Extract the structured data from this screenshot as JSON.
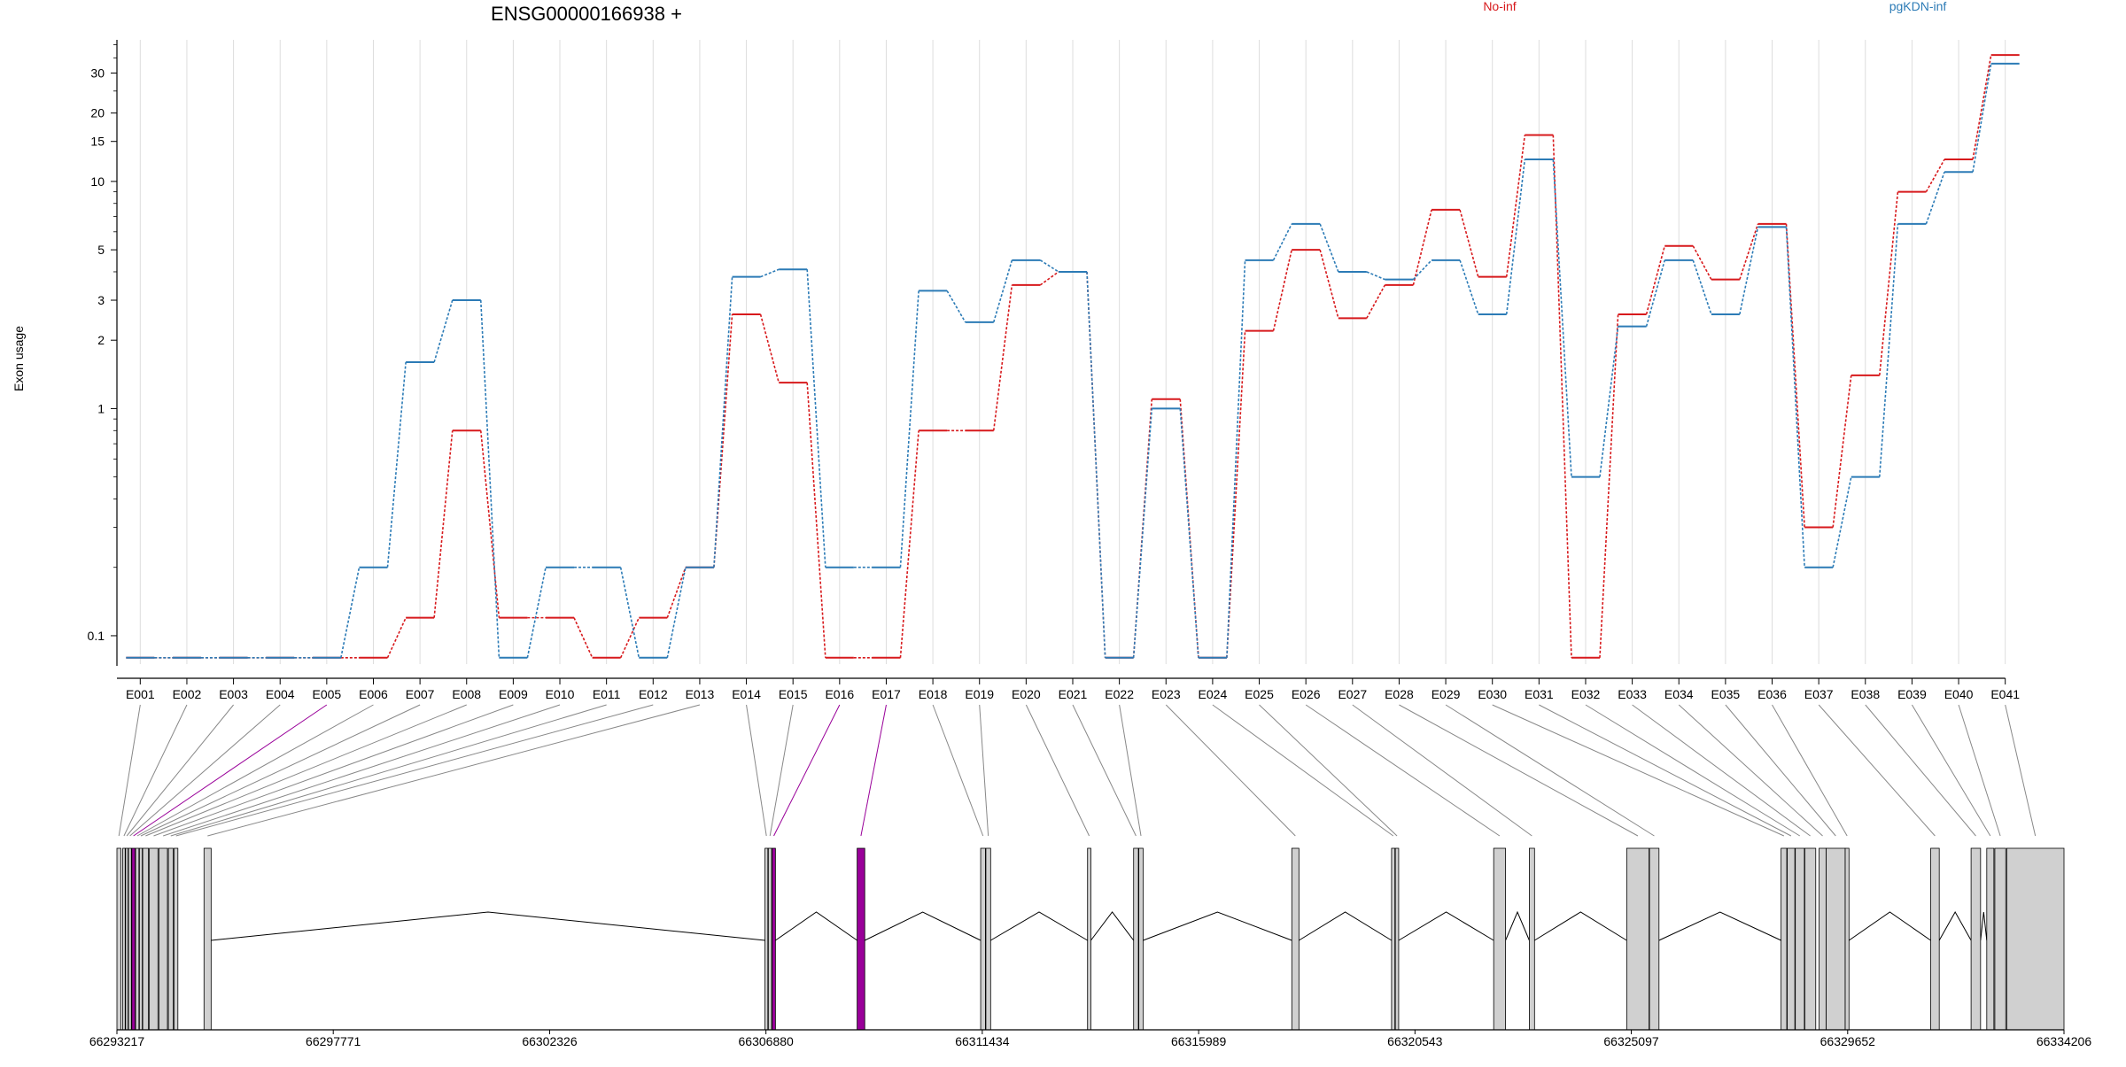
{
  "title": "ENSG00000166938 +",
  "colors": {
    "series_a": "#d7191c",
    "series_b": "#2c7bb6",
    "highlight": "#990099",
    "exon_fill": "#d0d0d0",
    "grid": "#dddddd",
    "axis": "#000000"
  },
  "chart_data": {
    "type": "line",
    "title": "ENSG00000166938 +",
    "ylabel": "Exon usage",
    "xlabel": "",
    "y_scale": "log",
    "ylim": [
      0.075,
      42
    ],
    "y_ticks": [
      0.1,
      1,
      2,
      3,
      5,
      10,
      15,
      20,
      30
    ],
    "y_tick_labels": [
      "0.1",
      "1",
      "2",
      "3",
      "5",
      "10",
      "15",
      "20",
      "30"
    ],
    "legend_position": "top",
    "categories": [
      "E001",
      "E002",
      "E003",
      "E004",
      "E005",
      "E006",
      "E007",
      "E008",
      "E009",
      "E010",
      "E011",
      "E012",
      "E013",
      "E014",
      "E015",
      "E016",
      "E017",
      "E018",
      "E019",
      "E020",
      "E021",
      "E022",
      "E023",
      "E024",
      "E025",
      "E026",
      "E027",
      "E028",
      "E029",
      "E030",
      "E031",
      "E032",
      "E033",
      "E034",
      "E035",
      "E036",
      "E037",
      "E038",
      "E039",
      "E040",
      "E041"
    ],
    "series": [
      {
        "name": "No-inf",
        "color": "#d7191c",
        "values": [
          0.08,
          0.08,
          0.08,
          0.08,
          0.08,
          0.08,
          0.12,
          0.8,
          0.12,
          0.12,
          0.08,
          0.12,
          0.2,
          2.6,
          1.3,
          0.08,
          0.08,
          0.8,
          0.8,
          3.5,
          4.0,
          0.08,
          1.1,
          0.08,
          2.2,
          5.0,
          2.5,
          3.5,
          7.5,
          3.8,
          16.0,
          0.08,
          2.6,
          5.2,
          3.7,
          6.5,
          0.3,
          1.4,
          9.0,
          12.5,
          36.0
        ]
      },
      {
        "name": "pgKDN-inf",
        "color": "#2c7bb6",
        "values": [
          0.08,
          0.08,
          0.08,
          0.08,
          0.08,
          0.2,
          1.6,
          3.0,
          0.08,
          0.2,
          0.2,
          0.08,
          0.2,
          3.8,
          4.1,
          0.2,
          0.2,
          3.3,
          2.4,
          4.5,
          4.0,
          0.08,
          1.0,
          0.08,
          4.5,
          6.5,
          4.0,
          3.7,
          4.5,
          2.6,
          12.5,
          0.5,
          2.3,
          4.5,
          2.6,
          6.3,
          0.2,
          0.5,
          6.5,
          11.0,
          33.0
        ]
      }
    ],
    "genomic_axis": {
      "tick_labels": [
        "66293217",
        "66297771",
        "66302326",
        "66306880",
        "66311434",
        "66315989",
        "66320543",
        "66325097",
        "66329652",
        "66334206"
      ],
      "tick_values": [
        66293217,
        66297771,
        66302326,
        66306880,
        66311434,
        66315989,
        66320543,
        66325097,
        66329652,
        66334206
      ],
      "range": [
        66293217,
        66334206
      ],
      "exon_starts": [
        66293217,
        66293340,
        66293400,
        66293460,
        66293530,
        66293610,
        66293690,
        66293760,
        66293900,
        66294100,
        66294300,
        66294420,
        66295050,
        66306860,
        66306930,
        66307010,
        66308800,
        66311400,
        66311510,
        66313650,
        66314620,
        66314730,
        66317950,
        66320050,
        66320130,
        66322200,
        66322950,
        66325000,
        66325480,
        66328250,
        66328380,
        66328550,
        66328750,
        66329050,
        66329200,
        66329600,
        66331400,
        66332250,
        66332580,
        66332750,
        66333000
      ],
      "exon_ends": [
        66293300,
        66293390,
        66293450,
        66293520,
        66293600,
        66293680,
        66293750,
        66293880,
        66294080,
        66294280,
        66294400,
        66294500,
        66295200,
        66306920,
        66307000,
        66307080,
        66308960,
        66311500,
        66311610,
        66313720,
        66314720,
        66314820,
        66318100,
        66320120,
        66320200,
        66322450,
        66323060,
        66325470,
        66325680,
        66328370,
        66328540,
        66328740,
        66328980,
        66329200,
        66329600,
        66329680,
        66331580,
        66332450,
        66332730,
        66332980,
        66334206
      ],
      "highlighted_exons": [
        "E005",
        "E016",
        "E017"
      ],
      "intron_arcs": [
        [
          66295200,
          66306860
        ],
        [
          66307080,
          66308800
        ],
        [
          66308960,
          66311400
        ],
        [
          66311610,
          66313650
        ],
        [
          66313720,
          66314620
        ],
        [
          66314820,
          66317950
        ],
        [
          66318100,
          66320050
        ],
        [
          66320200,
          66322200
        ],
        [
          66322450,
          66322950
        ],
        [
          66323060,
          66325000
        ],
        [
          66325680,
          66328250
        ],
        [
          66329680,
          66331400
        ],
        [
          66331580,
          66332250
        ],
        [
          66332450,
          66332580
        ]
      ]
    }
  }
}
